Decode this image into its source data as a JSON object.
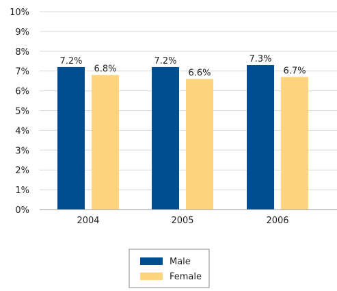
{
  "chart_data": {
    "type": "bar",
    "categories": [
      "2004",
      "2005",
      "2006"
    ],
    "series": [
      {
        "name": "Male",
        "values": [
          7.2,
          7.2,
          7.3
        ],
        "color": "#004e8f",
        "labels": [
          "7.2%",
          "7.2%",
          "7.3%"
        ]
      },
      {
        "name": "Female",
        "values": [
          6.8,
          6.6,
          6.7
        ],
        "color": "#fed57e",
        "labels": [
          "6.8%",
          "6.6%",
          "6.7%"
        ]
      }
    ],
    "y_ticks": [
      "0%",
      "1%",
      "2%",
      "3%",
      "4%",
      "5%",
      "6%",
      "7%",
      "8%",
      "9%",
      "10%"
    ],
    "ylim": [
      0,
      10
    ],
    "grid": true,
    "legend_position": "bottom-center",
    "gridline_color": "#d9d9d9"
  }
}
